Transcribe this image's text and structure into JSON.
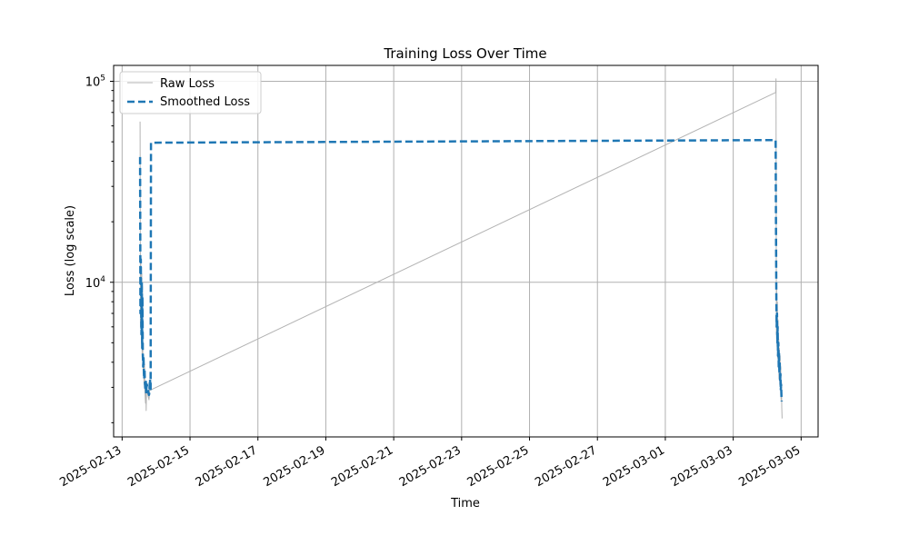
{
  "chart_data": {
    "type": "line",
    "title": "Training Loss Over Time",
    "xlabel": "Time",
    "ylabel": "Loss (log scale)",
    "yscale": "log",
    "xlim": [
      "2025-02-12T18:00",
      "2025-03-05T12:00"
    ],
    "ylim": [
      1700,
      120000
    ],
    "grid": true,
    "legend_position": "upper-left",
    "x_ticks": [
      "2025-02-13",
      "2025-02-15",
      "2025-02-17",
      "2025-02-19",
      "2025-02-21",
      "2025-02-23",
      "2025-02-25",
      "2025-02-27",
      "2025-03-01",
      "2025-03-03",
      "2025-03-05"
    ],
    "y_ticks": [
      {
        "value": 10000,
        "base": "10",
        "exp": "4"
      },
      {
        "value": 100000,
        "base": "10",
        "exp": "5"
      }
    ],
    "colors": {
      "raw": "#b3b3b3",
      "smoothed": "#1f77b4",
      "grid": "#b0b0b0"
    },
    "series": [
      {
        "name": "Raw Loss",
        "style": "solid",
        "x": [
          "2025-02-13T12:43",
          "2025-02-13T12:58",
          "2025-02-13T13:12",
          "2025-02-13T13:26",
          "2025-02-13T13:41",
          "2025-02-13T13:55",
          "2025-02-13T14:10",
          "2025-02-13T14:24",
          "2025-02-13T14:38",
          "2025-02-13T14:53",
          "2025-02-13T15:07",
          "2025-02-13T15:22",
          "2025-02-13T15:36",
          "2025-02-13T15:50",
          "2025-02-13T16:05",
          "2025-02-13T16:19",
          "2025-02-13T16:34",
          "2025-02-13T16:48",
          "2025-02-13T17:02",
          "2025-02-13T17:17",
          "2025-02-13T17:31",
          "2025-02-13T17:46",
          "2025-02-13T18:00",
          "2025-02-13T18:14",
          "2025-02-13T18:29",
          "2025-02-13T18:43",
          "2025-02-13T18:58",
          "2025-02-13T19:12",
          "2025-02-13T19:26",
          "2025-02-13T19:41",
          "2025-03-04T06:00",
          "2025-03-04T06:14",
          "2025-03-04T06:29",
          "2025-03-04T06:43",
          "2025-03-04T06:58",
          "2025-03-04T07:12",
          "2025-03-04T07:26",
          "2025-03-04T07:41",
          "2025-03-04T07:55",
          "2025-03-04T08:10",
          "2025-03-04T08:24",
          "2025-03-04T08:38",
          "2025-03-04T08:53",
          "2025-03-04T09:07",
          "2025-03-04T09:22",
          "2025-03-04T09:36",
          "2025-03-04T09:50",
          "2025-03-04T10:05",
          "2025-03-04T10:19",
          "2025-03-04T10:34"
        ],
        "y": [
          63000,
          6000,
          13500,
          8000,
          5000,
          11000,
          4200,
          9500,
          4600,
          3600,
          4000,
          3300,
          3100,
          3900,
          3000,
          2700,
          2500,
          3100,
          2300,
          2950,
          2900,
          2850,
          2800,
          2750,
          2700,
          2650,
          2600,
          2700,
          3100,
          2900,
          88000,
          103000,
          5500,
          9200,
          4800,
          8000,
          4200,
          6500,
          3800,
          5200,
          3300,
          4700,
          3100,
          4300,
          2900,
          3800,
          2600,
          3200,
          2400,
          2100
        ]
      },
      {
        "name": "Smoothed Loss",
        "style": "dashed",
        "x": [
          "2025-02-13T12:43",
          "2025-02-13T12:58",
          "2025-02-13T13:12",
          "2025-02-13T13:26",
          "2025-02-13T13:41",
          "2025-02-13T13:55",
          "2025-02-13T14:10",
          "2025-02-13T14:24",
          "2025-02-13T14:38",
          "2025-02-13T14:53",
          "2025-02-13T15:07",
          "2025-02-13T15:22",
          "2025-02-13T15:36",
          "2025-02-13T15:50",
          "2025-02-13T16:05",
          "2025-02-13T16:19",
          "2025-02-13T16:34",
          "2025-02-13T16:48",
          "2025-02-13T17:02",
          "2025-02-13T17:17",
          "2025-02-13T17:31",
          "2025-02-13T17:46",
          "2025-02-13T18:00",
          "2025-02-13T18:14",
          "2025-02-13T18:29",
          "2025-02-13T18:43",
          "2025-02-13T18:58",
          "2025-02-13T19:12",
          "2025-02-13T19:41",
          "2025-02-13T20:10",
          "2025-02-13T20:24",
          "2025-03-04T06:00",
          "2025-03-04T06:14",
          "2025-03-04T06:29",
          "2025-03-04T06:43",
          "2025-03-04T06:58",
          "2025-03-04T07:12",
          "2025-03-04T07:26",
          "2025-03-04T07:41",
          "2025-03-04T07:55",
          "2025-03-04T08:10",
          "2025-03-04T08:24",
          "2025-03-04T08:38",
          "2025-03-04T08:53",
          "2025-03-04T09:07",
          "2025-03-04T09:22",
          "2025-03-04T09:36",
          "2025-03-04T09:50",
          "2025-03-04T10:05",
          "2025-03-04T10:19"
        ],
        "y": [
          42000,
          7000,
          13000,
          8500,
          5500,
          10000,
          4700,
          8500,
          4400,
          3800,
          4200,
          3500,
          3300,
          3700,
          3200,
          3000,
          2900,
          3200,
          2800,
          3000,
          3100,
          3000,
          2950,
          2900,
          2850,
          2800,
          2750,
          2800,
          3300,
          2900,
          49500,
          51000,
          18000,
          8000,
          6000,
          7000,
          5000,
          6000,
          4300,
          5000,
          3800,
          4500,
          3500,
          4000,
          3200,
          3500,
          2900,
          3100,
          2700,
          2550
        ]
      }
    ]
  }
}
